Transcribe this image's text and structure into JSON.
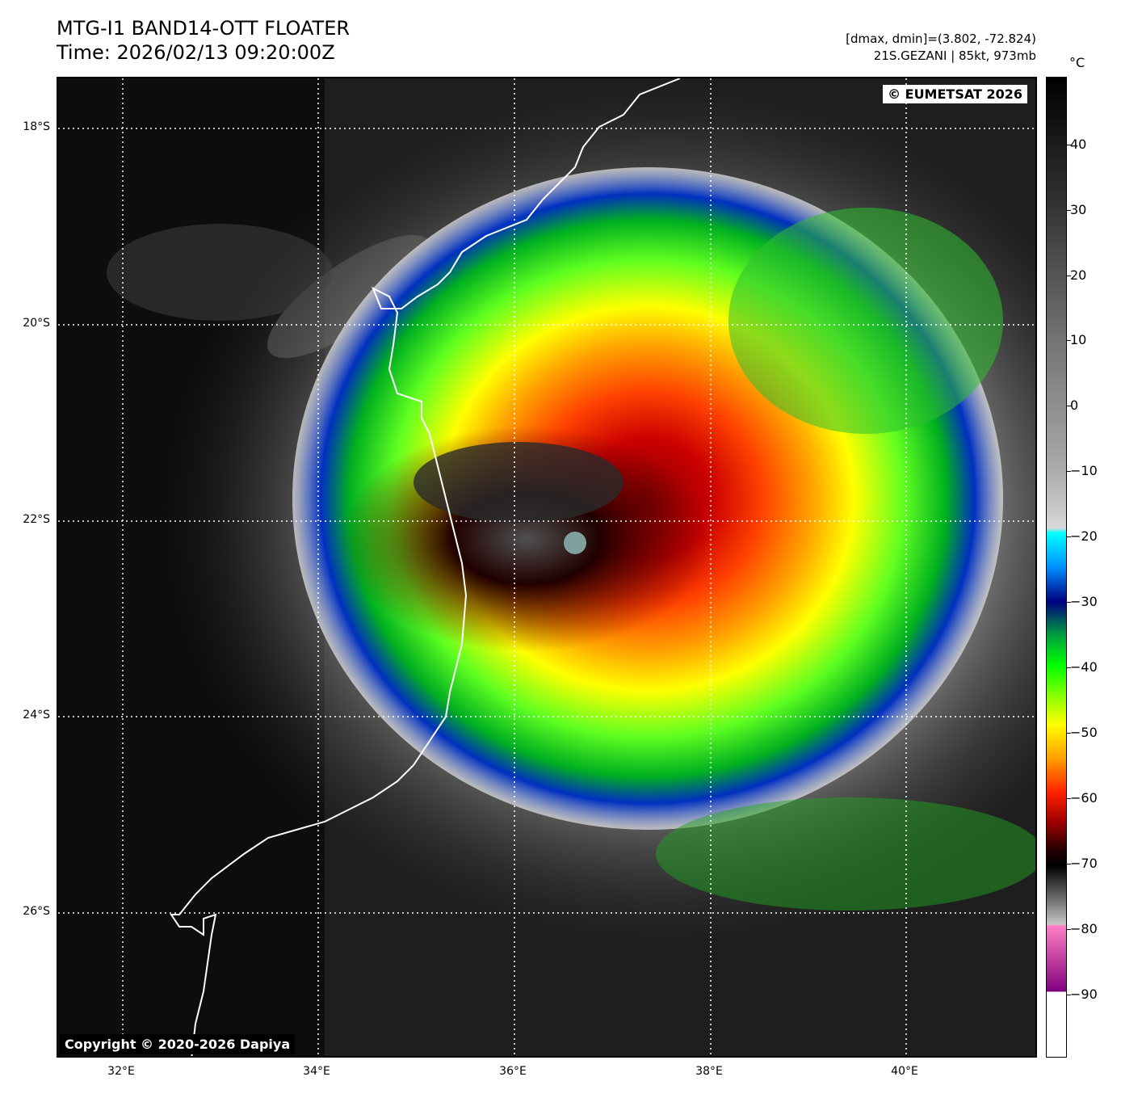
{
  "header": {
    "title_line1": "MTG-I1 BAND14-OTT FLOATER",
    "title_line2": "Time: 2026/02/13 09:20:00Z",
    "info_line1": "[dmax, dmin]=(3.802, -72.824)",
    "info_line2": "21S.GEZANI | 85kt, 973mb"
  },
  "map": {
    "eumetsat_badge": "© EUMETSAT 2026",
    "copyright_badge": "Copyright © 2020-2026 Dapiya",
    "lat_labels": [
      "18°S",
      "20°S",
      "22°S",
      "24°S",
      "26°S"
    ],
    "lon_labels": [
      "32°E",
      "34°E",
      "36°E",
      "38°E",
      "40°E"
    ]
  },
  "colorbar": {
    "unit": "°C",
    "ticks": [
      "40",
      "30",
      "20",
      "10",
      "0",
      "−10",
      "−20",
      "−30",
      "−40",
      "−50",
      "−60",
      "−70",
      "−80",
      "−90"
    ]
  }
}
